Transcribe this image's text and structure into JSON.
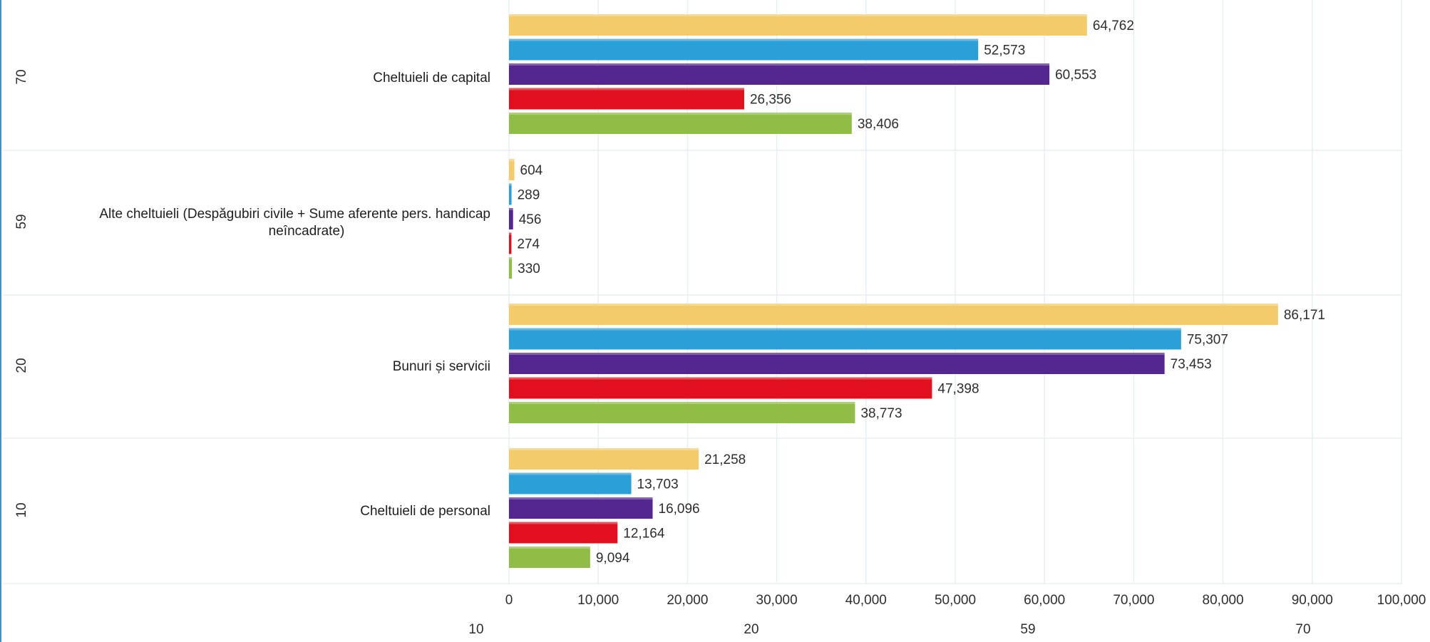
{
  "chart_data": {
    "type": "bar",
    "orientation": "horizontal",
    "categories": [
      {
        "code": "70",
        "label": "Cheltuieli de capital"
      },
      {
        "code": "59",
        "label_lines": [
          "Alte cheltuieli (Despăgubiri civile + Sume aferente pers. handicap",
          "neîncadrate)"
        ]
      },
      {
        "code": "20",
        "label": "Bunuri și servicii"
      },
      {
        "code": "10",
        "label": "Cheltuieli de personal"
      }
    ],
    "series": [
      {
        "color": "#f3cb6a",
        "values": [
          64762,
          604,
          86171,
          21258
        ],
        "labels": [
          "64,762",
          "604",
          "86,171",
          "21,258"
        ]
      },
      {
        "color": "#2a9fd8",
        "values": [
          52573,
          289,
          75307,
          13703
        ],
        "labels": [
          "52,573",
          "289",
          "75,307",
          "13,703"
        ]
      },
      {
        "color": "#54268f",
        "values": [
          60553,
          456,
          73453,
          16096
        ],
        "labels": [
          "60,553",
          "456",
          "73,453",
          "16,096"
        ]
      },
      {
        "color": "#e2101e",
        "values": [
          26356,
          274,
          47398,
          12164
        ],
        "labels": [
          "26,356",
          "274",
          "47,398",
          "12,164"
        ]
      },
      {
        "color": "#8fbd45",
        "values": [
          38406,
          330,
          38773,
          9094
        ],
        "labels": [
          "38,406",
          "330",
          "38,773",
          "9,094"
        ]
      }
    ],
    "xlim": [
      0,
      100000
    ],
    "x_ticks": [
      0,
      10000,
      20000,
      30000,
      40000,
      50000,
      60000,
      70000,
      80000,
      90000,
      100000
    ],
    "x_tick_labels": [
      "0",
      "10,000",
      "20,000",
      "30,000",
      "40,000",
      "50,000",
      "60,000",
      "70,000",
      "80,000",
      "90,000",
      "100,000"
    ],
    "bottom_labels": [
      "10",
      "20",
      "59",
      "70"
    ],
    "grid": true,
    "legend": "none"
  }
}
